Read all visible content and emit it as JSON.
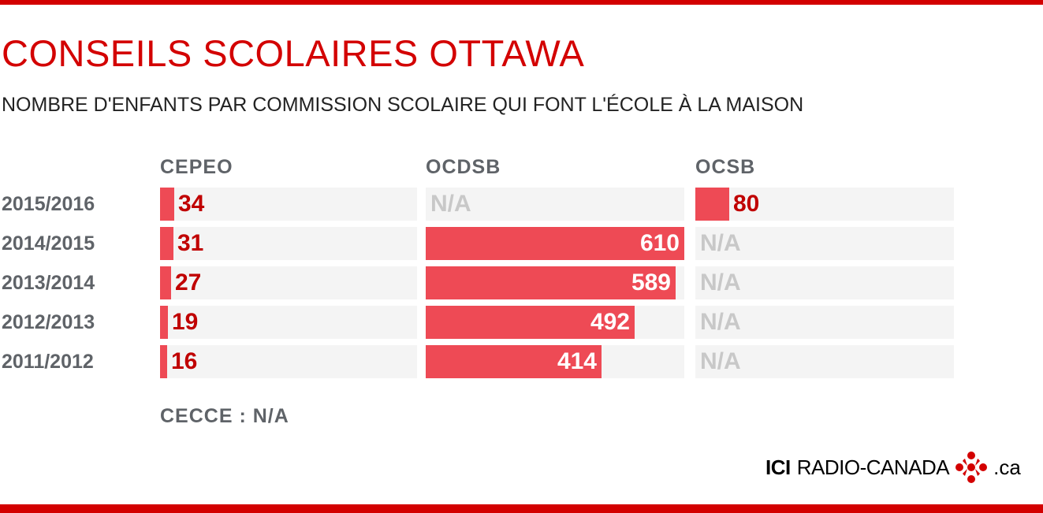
{
  "header": {
    "title": "CONSEILS SCOLAIRES OTTAWA",
    "subtitle": "NOMBRE D'ENFANTS PAR COMMISSION SCOLAIRE QUI FONT L'ÉCOLE À LA MAISON"
  },
  "footnote": "CECCE : N/A",
  "brand": {
    "ici": "ICI",
    "name": "RADIO-CANADA",
    "tld": ".ca",
    "icon": "cbc-gem-icon"
  },
  "colors": {
    "accent": "#d30000",
    "bar": "#ee4a55",
    "track": "#f4f4f4",
    "na": "#c8c8c8",
    "label": "#5f6368"
  },
  "chart_data": {
    "type": "bar",
    "orientation": "horizontal",
    "title": "CONSEILS SCOLAIRES OTTAWA",
    "subtitle": "NOMBRE D'ENFANTS PAR COMMISSION SCOLAIRE QUI FONT L'ÉCOLE À LA MAISON",
    "categories": [
      "2015/2016",
      "2014/2015",
      "2013/2014",
      "2012/2013",
      "2011/2012"
    ],
    "xlim": [
      0,
      610
    ],
    "na_label": "N/A",
    "series": [
      {
        "name": "CEPEO",
        "values": [
          34,
          31,
          27,
          19,
          16
        ]
      },
      {
        "name": "OCDSB",
        "values": [
          null,
          610,
          589,
          492,
          414
        ]
      },
      {
        "name": "OCSB",
        "values": [
          80,
          null,
          null,
          null,
          null
        ]
      }
    ],
    "note": "CECCE : N/A"
  }
}
